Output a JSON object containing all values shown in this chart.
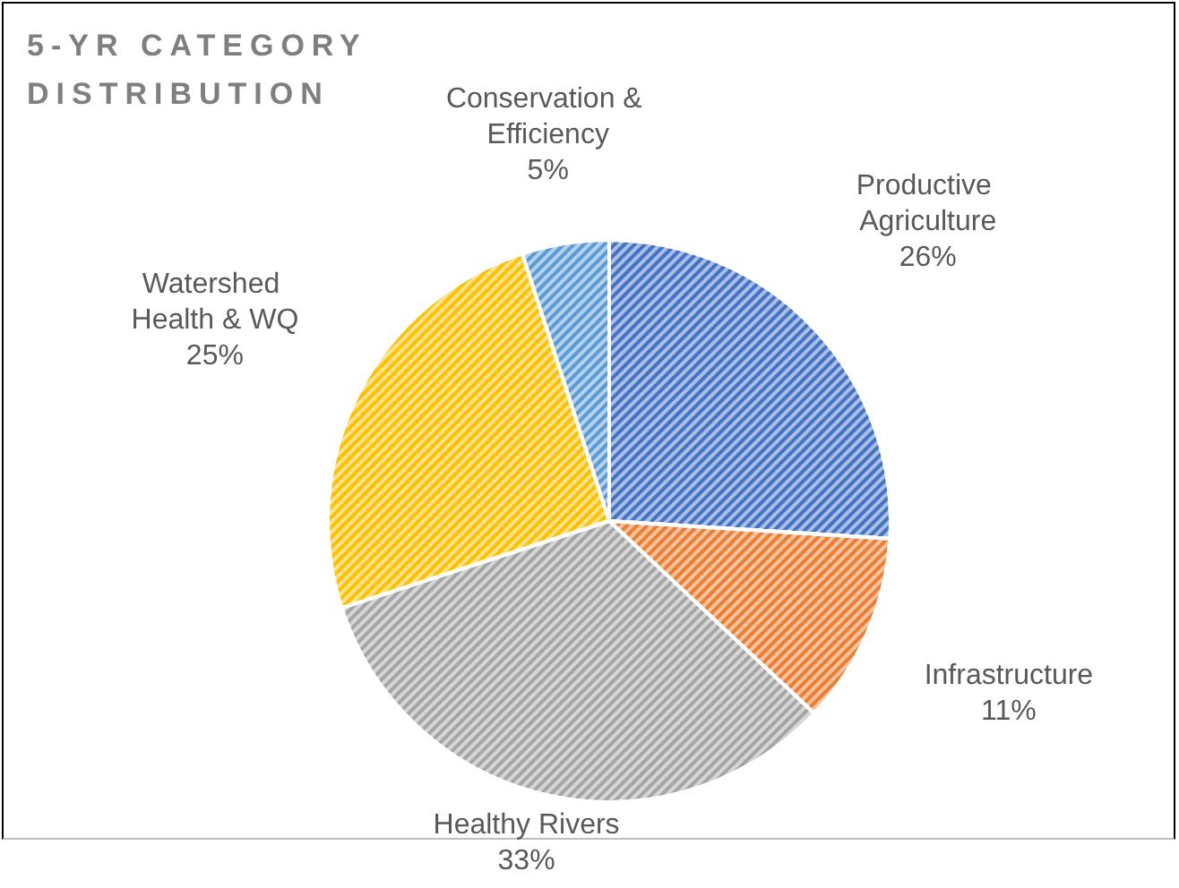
{
  "chart_data": {
    "type": "pie",
    "title": "5-YR CATEGORY DISTRIBUTION",
    "categories": [
      "Productive Agriculture",
      "Infrastructure",
      "Healthy Rivers",
      "Watershed Health & WQ",
      "Conservation & Efficiency"
    ],
    "values": [
      26,
      11,
      33,
      25,
      5
    ],
    "colors": [
      "#4472c4",
      "#ed7d31",
      "#a5a5a5",
      "#ffc000",
      "#5b9bd5"
    ],
    "value_labels": [
      "26%",
      "11%",
      "33%",
      "25%",
      "5%"
    ]
  }
}
